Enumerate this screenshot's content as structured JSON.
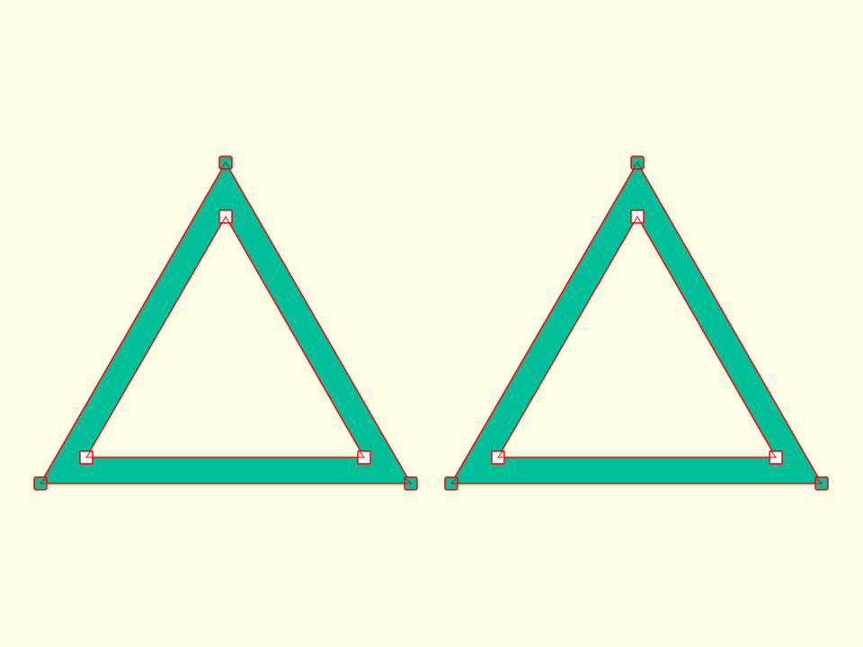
{
  "colors": {
    "background": "#ffffe5",
    "fill": "#00bf99",
    "outline": "#ff0000",
    "handle_fill": "#ffffff"
  },
  "shapes": [
    {
      "id": "left",
      "kind": "triangle-frame"
    },
    {
      "id": "right",
      "kind": "triangle-frame"
    }
  ]
}
